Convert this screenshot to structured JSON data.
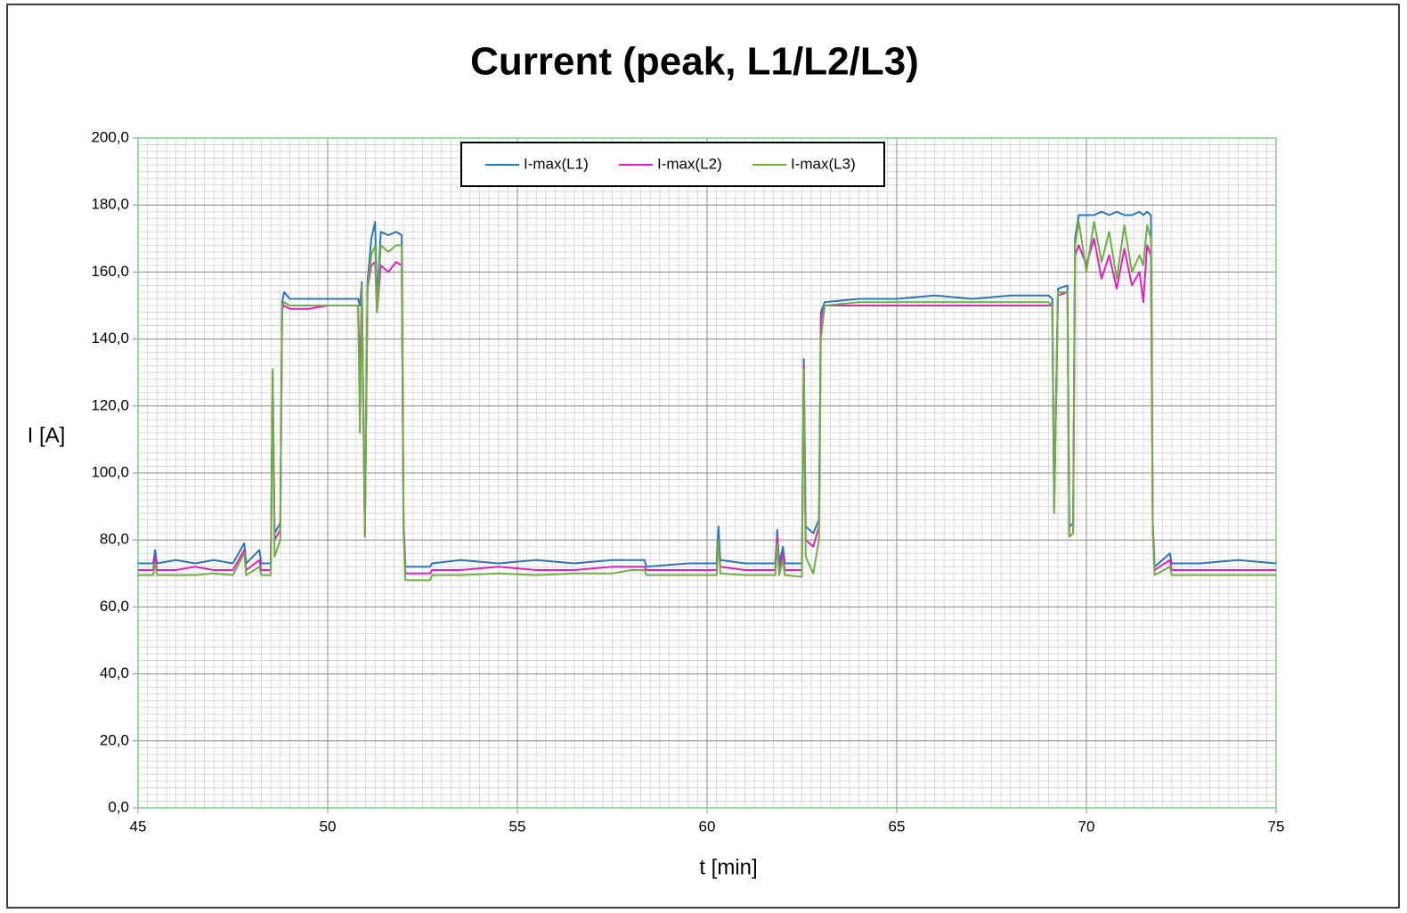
{
  "chart_data": {
    "type": "line",
    "title": "Current (peak, L1/L2/L3)",
    "x_label": "t [min]",
    "y_label": "I [A]",
    "xlim": [
      45,
      75
    ],
    "xticks": [
      45,
      50,
      55,
      60,
      65,
      70,
      75
    ],
    "ylim": [
      0,
      200
    ],
    "yticks": [
      {
        "value": 0,
        "label": "0,0"
      },
      {
        "value": 20,
        "label": "20,0"
      },
      {
        "value": 40,
        "label": "40,0"
      },
      {
        "value": 60,
        "label": "60,0"
      },
      {
        "value": 80,
        "label": "80,0"
      },
      {
        "value": 100,
        "label": "100,0"
      },
      {
        "value": 120,
        "label": "120,0"
      },
      {
        "value": 140,
        "label": "140,0"
      },
      {
        "value": 160,
        "label": "160,0"
      },
      {
        "value": 180,
        "label": "180,0"
      },
      {
        "value": 200,
        "label": "200,0"
      }
    ],
    "grid": true,
    "minor_grid": {
      "x": 0.25,
      "y": 2
    },
    "legend": "top",
    "x": [
      45.0,
      45.4,
      45.45,
      45.5,
      46.0,
      46.5,
      47.0,
      47.5,
      47.8,
      47.85,
      48.2,
      48.25,
      48.5,
      48.55,
      48.6,
      48.75,
      48.8,
      48.85,
      49.0,
      49.5,
      50.0,
      50.5,
      50.8,
      50.85,
      50.9,
      50.98,
      51.05,
      51.15,
      51.25,
      51.3,
      51.4,
      51.6,
      51.8,
      51.95,
      52.0,
      52.05,
      52.7,
      52.75,
      53.5,
      54.5,
      55.5,
      56.5,
      57.5,
      58.0,
      58.35,
      58.4,
      59.5,
      60.25,
      60.3,
      60.35,
      61.0,
      61.8,
      61.85,
      61.9,
      62.0,
      62.05,
      62.5,
      62.55,
      62.6,
      62.8,
      62.95,
      63.0,
      63.1,
      64.0,
      65.0,
      66.0,
      67.0,
      68.0,
      69.0,
      69.1,
      69.15,
      69.25,
      69.5,
      69.55,
      69.65,
      69.7,
      69.8,
      70.0,
      70.2,
      70.4,
      70.6,
      70.8,
      71.0,
      71.2,
      71.4,
      71.5,
      71.6,
      71.7,
      71.75,
      71.8,
      72.2,
      72.25,
      73.0,
      74.0,
      75.0
    ],
    "series": [
      {
        "name": "I-max(L1)",
        "color": "#2e75b6",
        "values": [
          73,
          73,
          77,
          73,
          74,
          73,
          74,
          73,
          79,
          73,
          77,
          73,
          73,
          130,
          82,
          85,
          151,
          154,
          152,
          152,
          152,
          152,
          152,
          150,
          157,
          82,
          157,
          170,
          175,
          151,
          172,
          171,
          172,
          171,
          85,
          72,
          72,
          73,
          74,
          73,
          74,
          73,
          74,
          74,
          74,
          72,
          73,
          73,
          84,
          74,
          73,
          73,
          83,
          73,
          78,
          73,
          73,
          134,
          84,
          82,
          86,
          148,
          151,
          152,
          152,
          153,
          152,
          153,
          153,
          152,
          90,
          155,
          156,
          84,
          85,
          170,
          177,
          177,
          177,
          178,
          177,
          178,
          177,
          177,
          178,
          177,
          178,
          177,
          85,
          72,
          76,
          73,
          73,
          74,
          73
        ]
      },
      {
        "name": "I-max(L2)",
        "color": "#e020c0",
        "values": [
          71,
          71,
          75,
          71,
          71,
          72,
          71,
          71,
          77,
          71,
          74,
          71,
          71,
          128,
          80,
          83,
          149,
          150,
          149,
          149,
          150,
          150,
          150,
          130,
          155,
          81,
          155,
          162,
          163,
          148,
          162,
          160,
          163,
          162,
          83,
          70,
          70,
          71,
          71,
          72,
          71,
          71,
          72,
          72,
          72,
          71,
          71,
          71,
          80,
          72,
          71,
          71,
          81,
          71,
          76,
          71,
          71,
          132,
          80,
          78,
          84,
          146,
          150,
          150,
          150,
          150,
          150,
          150,
          150,
          150,
          89,
          153,
          154,
          81,
          82,
          165,
          168,
          162,
          170,
          158,
          165,
          155,
          167,
          156,
          160,
          151,
          168,
          165,
          82,
          71,
          74,
          71,
          71,
          71,
          71
        ]
      },
      {
        "name": "I-max(L3)",
        "color": "#70ad47",
        "values": [
          69.5,
          69.5,
          73,
          69.5,
          69.5,
          69.5,
          70,
          69.5,
          76,
          69.5,
          72,
          69.5,
          69.5,
          131,
          75,
          80,
          150,
          151,
          150,
          150,
          150,
          150,
          150,
          112,
          156,
          81,
          155,
          165,
          168,
          148,
          168,
          166,
          168,
          168,
          82,
          68,
          68,
          69.5,
          69.5,
          70,
          69.5,
          70,
          70,
          71,
          71,
          69.5,
          69.5,
          69.5,
          80,
          70,
          69.5,
          69.5,
          79,
          69.5,
          74,
          69.5,
          69,
          131,
          75,
          70,
          80,
          140,
          150,
          151,
          151,
          151,
          151,
          151,
          151,
          150,
          88,
          154,
          154,
          81,
          82,
          168,
          175,
          160,
          175,
          163,
          172,
          158,
          174,
          160,
          165,
          162,
          174,
          170,
          83,
          69.5,
          72,
          69.5,
          69.5,
          69.5,
          69.5
        ]
      }
    ]
  }
}
